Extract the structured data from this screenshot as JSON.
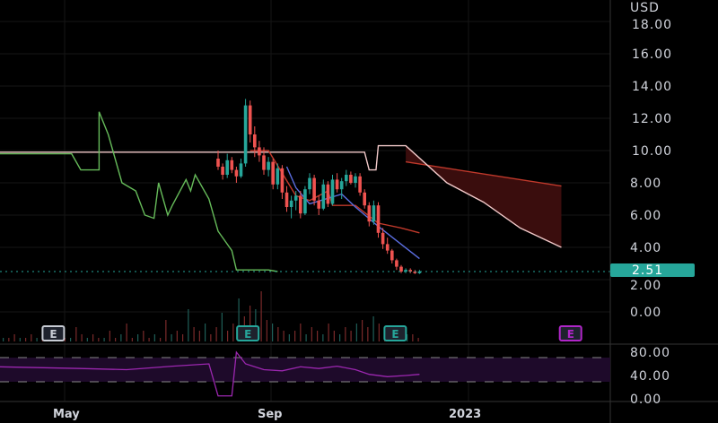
{
  "chart_data": {
    "type": "candlestick",
    "currency": "USD",
    "price_axis": {
      "ticks": [
        "18.00",
        "16.00",
        "14.00",
        "12.00",
        "10.00",
        "8.00",
        "6.00",
        "4.00",
        "2.00",
        "0.00"
      ],
      "ylim": [
        0,
        18
      ]
    },
    "rsi_axis": {
      "ticks": [
        "80.00",
        "40.00",
        "0.00"
      ],
      "bands": [
        40,
        80
      ]
    },
    "x_ticks": [
      "May",
      "Sep",
      "2023"
    ],
    "last_price": "2.51",
    "colors": {
      "up": "#26a69a",
      "down": "#ef5350",
      "tenkan": "#5b6ee1",
      "kijun": "#c0392b",
      "lagging": "#66bb5a",
      "span": "#f2c9c9",
      "cloud": "#3a0d0d",
      "rsi": "#9c27b0",
      "last": "#26a69a"
    },
    "candles": [
      [
        9.5,
        10,
        8.8,
        9.0
      ],
      [
        9.0,
        9.2,
        8.2,
        8.5
      ],
      [
        8.5,
        9.8,
        8.3,
        9.4
      ],
      [
        9.4,
        9.6,
        8.6,
        8.8
      ],
      [
        8.8,
        9.0,
        8.0,
        8.4
      ],
      [
        8.4,
        9.5,
        8.3,
        9.2
      ],
      [
        9.2,
        13.2,
        9.0,
        12.8
      ],
      [
        12.8,
        13.1,
        10.5,
        11.0
      ],
      [
        11.0,
        11.5,
        9.6,
        10.2
      ],
      [
        10.2,
        10.6,
        9.3,
        9.7
      ],
      [
        9.7,
        10.2,
        8.5,
        8.8
      ],
      [
        8.8,
        9.6,
        8.4,
        9.3
      ],
      [
        9.3,
        9.5,
        7.6,
        7.9
      ],
      [
        7.9,
        9.2,
        7.6,
        8.9
      ],
      [
        8.9,
        9.1,
        7.0,
        7.4
      ],
      [
        7.4,
        7.8,
        6.2,
        6.5
      ],
      [
        6.5,
        7.2,
        5.8,
        6.9
      ],
      [
        6.9,
        7.5,
        6.3,
        7.2
      ],
      [
        7.2,
        7.5,
        5.8,
        6.1
      ],
      [
        6.1,
        7.8,
        6.0,
        7.6
      ],
      [
        7.6,
        8.6,
        7.3,
        8.3
      ],
      [
        8.3,
        8.5,
        6.6,
        6.9
      ],
      [
        6.9,
        7.2,
        6.0,
        6.4
      ],
      [
        6.4,
        8.2,
        6.3,
        7.9
      ],
      [
        7.9,
        8.1,
        6.5,
        6.7
      ],
      [
        6.7,
        8.5,
        6.6,
        8.2
      ],
      [
        8.2,
        8.6,
        7.4,
        7.6
      ],
      [
        7.6,
        8.3,
        7.0,
        8.1
      ],
      [
        8.1,
        8.8,
        7.8,
        8.5
      ],
      [
        8.5,
        8.7,
        7.9,
        8.0
      ],
      [
        8.0,
        8.6,
        7.7,
        8.4
      ],
      [
        8.4,
        8.6,
        7.2,
        7.4
      ],
      [
        7.4,
        7.6,
        6.4,
        6.6
      ],
      [
        6.6,
        6.8,
        5.3,
        5.6
      ],
      [
        5.6,
        6.9,
        5.4,
        6.6
      ],
      [
        6.6,
        6.8,
        4.6,
        4.9
      ],
      [
        4.9,
        5.2,
        3.9,
        4.2
      ],
      [
        4.2,
        4.6,
        3.6,
        3.8
      ],
      [
        3.8,
        3.9,
        3.0,
        3.2
      ],
      [
        3.2,
        3.3,
        2.6,
        2.8
      ],
      [
        2.8,
        2.9,
        2.4,
        2.5
      ],
      [
        2.5,
        2.7,
        2.4,
        2.6
      ],
      [
        2.6,
        2.7,
        2.4,
        2.5
      ],
      [
        2.5,
        2.6,
        2.35,
        2.4
      ],
      [
        2.4,
        2.6,
        2.35,
        2.51
      ]
    ],
    "lagging_span": [
      [
        -48,
        9.8
      ],
      [
        -32,
        9.8
      ],
      [
        -30,
        8.8
      ],
      [
        -26,
        8.8
      ],
      [
        -26,
        12.4
      ],
      [
        -24,
        11
      ],
      [
        -23,
        10
      ],
      [
        -21,
        8
      ],
      [
        -18,
        7.5
      ],
      [
        -16,
        6
      ],
      [
        -14,
        5.8
      ],
      [
        -13,
        8
      ],
      [
        -11,
        6
      ],
      [
        -10,
        6.6
      ],
      [
        -7,
        8.2
      ],
      [
        -6,
        7.5
      ],
      [
        -5,
        8.5
      ],
      [
        -2,
        7
      ],
      [
        0,
        5
      ],
      [
        3,
        3.8
      ],
      [
        4,
        2.6
      ],
      [
        11,
        2.6
      ],
      [
        13,
        2.5
      ]
    ],
    "tenkan": [
      [
        15,
        9
      ],
      [
        17,
        7.7
      ],
      [
        20,
        6.7
      ],
      [
        27,
        7.3
      ],
      [
        30,
        6.5
      ],
      [
        35,
        5.3
      ],
      [
        44,
        3.3
      ]
    ],
    "kijun": [
      [
        7,
        10
      ],
      [
        11,
        10
      ],
      [
        17,
        7.2
      ],
      [
        20,
        6.9
      ],
      [
        24,
        7.5
      ],
      [
        25,
        6.6
      ],
      [
        30,
        6.6
      ],
      [
        35,
        5.5
      ],
      [
        40,
        5.2
      ],
      [
        44,
        4.9
      ]
    ],
    "span_a": [
      [
        -48,
        9.9
      ],
      [
        32,
        9.9
      ],
      [
        33,
        8.8
      ],
      [
        34.5,
        8.8
      ],
      [
        35,
        10.3
      ],
      [
        41,
        10.3
      ],
      [
        50,
        8
      ],
      [
        58,
        6.8
      ],
      [
        66,
        5.2
      ],
      [
        75,
        4
      ]
    ],
    "span_b": [
      [
        41,
        9.3
      ],
      [
        75,
        7.8
      ]
    ],
    "volume": [
      1,
      1,
      2,
      1,
      1,
      2,
      1,
      3,
      2,
      1,
      2,
      1,
      1,
      4,
      2,
      1,
      2,
      1,
      1,
      3,
      1,
      2,
      5,
      1,
      2,
      3,
      1,
      2,
      1,
      6,
      2,
      3,
      2,
      9,
      4,
      3,
      5,
      2,
      4,
      8,
      3,
      5,
      12,
      7,
      10,
      9,
      14,
      6,
      5,
      4,
      3,
      2,
      3,
      5,
      2,
      4,
      3,
      2,
      5,
      3,
      2,
      4,
      3,
      5,
      6,
      4,
      7,
      5,
      3,
      4,
      2,
      3,
      2,
      2,
      1
    ],
    "rsi": [
      [
        -48,
        55
      ],
      [
        -30,
        52
      ],
      [
        -20,
        50
      ],
      [
        -10,
        56
      ],
      [
        -2,
        60
      ],
      [
        0,
        5
      ],
      [
        3,
        5
      ],
      [
        4,
        80
      ],
      [
        6,
        60
      ],
      [
        10,
        50
      ],
      [
        14,
        48
      ],
      [
        18,
        55
      ],
      [
        22,
        52
      ],
      [
        26,
        56
      ],
      [
        30,
        50
      ],
      [
        33,
        42
      ],
      [
        37,
        38
      ],
      [
        41,
        40
      ],
      [
        44,
        42
      ]
    ],
    "earnings": [
      {
        "x": -36,
        "label": "E",
        "color": "#c8ccd4"
      },
      {
        "x": 6.5,
        "label": "E",
        "color": "#26a69a"
      },
      {
        "x": 38.7,
        "label": "E",
        "color": "#26a69a"
      },
      {
        "x": 77,
        "label": "E",
        "color": "#b026c8"
      }
    ]
  }
}
